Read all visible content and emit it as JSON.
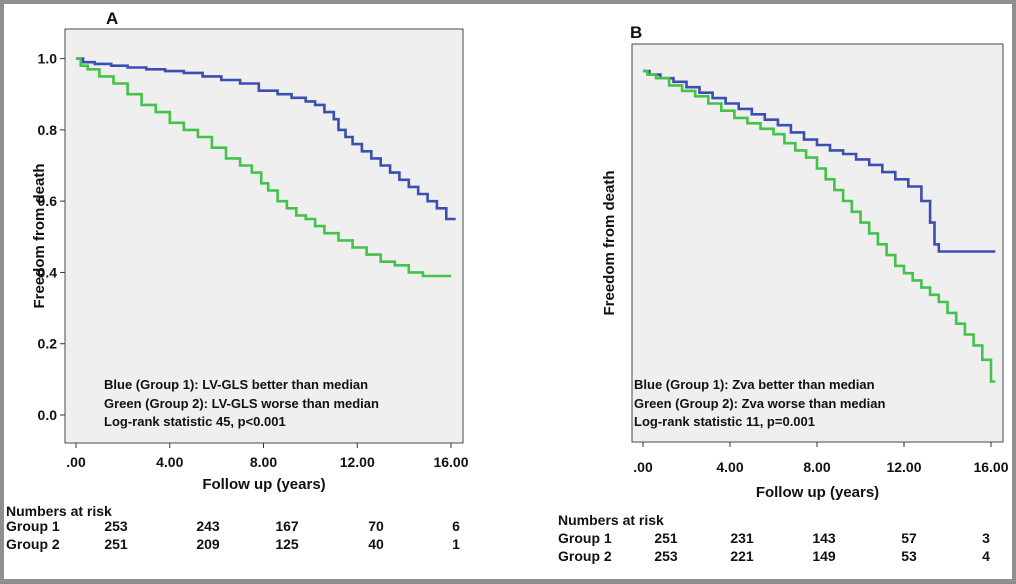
{
  "chart_data": [
    {
      "type": "line",
      "panel_label": "A",
      "ylabel": "Freedom from death",
      "xlabel": "Follow up (years)",
      "xlim": [
        0,
        16
      ],
      "ylim": [
        0,
        1
      ],
      "xticks": [
        ".00",
        "4.00",
        "8.00",
        "12.00",
        "16.00"
      ],
      "yticks": [
        "0.0",
        "0.2",
        "0.4",
        "0.6",
        "0.8",
        "1.0"
      ],
      "grid": false,
      "annotations": [
        "Blue (Group 1): LV-GLS better than median",
        "Green (Group 2): LV-GLS worse than median",
        "Log-rank statistic 45, p<0.001"
      ],
      "series": [
        {
          "color": "#3a4fb0",
          "step": true,
          "x": [
            0,
            0.3,
            0.8,
            1.5,
            2.2,
            3.0,
            3.8,
            4.6,
            5.4,
            6.2,
            7.0,
            7.8,
            8.6,
            9.2,
            9.8,
            10.2,
            10.6,
            11.0,
            11.2,
            11.5,
            11.8,
            12.2,
            12.6,
            13.0,
            13.4,
            13.8,
            14.2,
            14.6,
            15.0,
            15.4,
            15.8,
            16.2
          ],
          "y": [
            1.0,
            0.99,
            0.985,
            0.98,
            0.975,
            0.97,
            0.965,
            0.96,
            0.95,
            0.94,
            0.93,
            0.91,
            0.9,
            0.89,
            0.88,
            0.87,
            0.85,
            0.83,
            0.8,
            0.78,
            0.76,
            0.74,
            0.72,
            0.7,
            0.68,
            0.66,
            0.64,
            0.62,
            0.6,
            0.58,
            0.55,
            0.55
          ]
        },
        {
          "color": "#44c24a",
          "step": true,
          "x": [
            0,
            0.2,
            0.5,
            1.0,
            1.6,
            2.2,
            2.8,
            3.4,
            4.0,
            4.6,
            5.2,
            5.8,
            6.4,
            7.0,
            7.5,
            7.9,
            8.2,
            8.6,
            9.0,
            9.4,
            9.8,
            10.2,
            10.6,
            11.2,
            11.8,
            12.4,
            13.0,
            13.6,
            14.2,
            14.8,
            15.5,
            16.0
          ],
          "y": [
            1.0,
            0.98,
            0.97,
            0.95,
            0.93,
            0.9,
            0.87,
            0.85,
            0.82,
            0.8,
            0.78,
            0.75,
            0.72,
            0.7,
            0.68,
            0.65,
            0.63,
            0.6,
            0.58,
            0.56,
            0.55,
            0.53,
            0.51,
            0.49,
            0.47,
            0.45,
            0.43,
            0.42,
            0.4,
            0.39,
            0.39,
            0.39
          ]
        }
      ],
      "risk_table": {
        "header": "Numbers at risk",
        "rows": [
          {
            "label": "Group 1",
            "values": [
              "253",
              "243",
              "167",
              "70",
              "6"
            ]
          },
          {
            "label": "Group 2",
            "values": [
              "251",
              "209",
              "125",
              "40",
              "1"
            ]
          }
        ]
      }
    },
    {
      "type": "line",
      "panel_label": "B",
      "ylabel": "Freedom from death",
      "xlabel": "Follow up (years)",
      "xlim": [
        0,
        16
      ],
      "ylim": [
        0,
        1
      ],
      "xticks": [
        ".00",
        "4.00",
        "8.00",
        "12.00",
        "16.00"
      ],
      "yticks": [],
      "grid": false,
      "annotations": [
        "Blue (Group 1): Zva better than median",
        "Green (Group 2): Zva worse than median",
        "Log-rank statistic 11, p=0.001"
      ],
      "series": [
        {
          "color": "#3a4fb0",
          "step": true,
          "x": [
            0,
            0.3,
            0.8,
            1.4,
            2.0,
            2.6,
            3.2,
            3.8,
            4.4,
            5.0,
            5.6,
            6.2,
            6.8,
            7.4,
            8.0,
            8.6,
            9.2,
            9.8,
            10.4,
            11.0,
            11.6,
            12.2,
            12.8,
            13.2,
            13.4,
            13.6,
            16.2
          ],
          "y": [
            1.0,
            0.99,
            0.98,
            0.97,
            0.955,
            0.94,
            0.925,
            0.91,
            0.895,
            0.88,
            0.865,
            0.85,
            0.83,
            0.81,
            0.795,
            0.78,
            0.77,
            0.755,
            0.74,
            0.72,
            0.7,
            0.68,
            0.64,
            0.58,
            0.52,
            0.5,
            0.5
          ]
        },
        {
          "color": "#44c24a",
          "step": true,
          "x": [
            0,
            0.2,
            0.6,
            1.2,
            1.8,
            2.4,
            3.0,
            3.6,
            4.2,
            4.8,
            5.4,
            6.0,
            6.5,
            7.0,
            7.5,
            8.0,
            8.4,
            8.8,
            9.2,
            9.6,
            10.0,
            10.4,
            10.8,
            11.2,
            11.6,
            12.0,
            12.4,
            12.8,
            13.2,
            13.6,
            14.0,
            14.4,
            14.8,
            15.2,
            15.6,
            16.0,
            16.2
          ],
          "y": [
            1.0,
            0.99,
            0.98,
            0.96,
            0.945,
            0.93,
            0.91,
            0.89,
            0.87,
            0.855,
            0.84,
            0.825,
            0.8,
            0.78,
            0.76,
            0.73,
            0.7,
            0.67,
            0.64,
            0.61,
            0.58,
            0.55,
            0.52,
            0.49,
            0.46,
            0.44,
            0.42,
            0.4,
            0.38,
            0.36,
            0.33,
            0.3,
            0.27,
            0.24,
            0.2,
            0.14,
            0.14
          ]
        }
      ],
      "risk_table": {
        "header": "Numbers at risk",
        "rows": [
          {
            "label": "Group 1",
            "values": [
              "251",
              "231",
              "143",
              "57",
              "3"
            ]
          },
          {
            "label": "Group 2",
            "values": [
              "253",
              "221",
              "149",
              "53",
              "4"
            ]
          }
        ]
      }
    }
  ]
}
